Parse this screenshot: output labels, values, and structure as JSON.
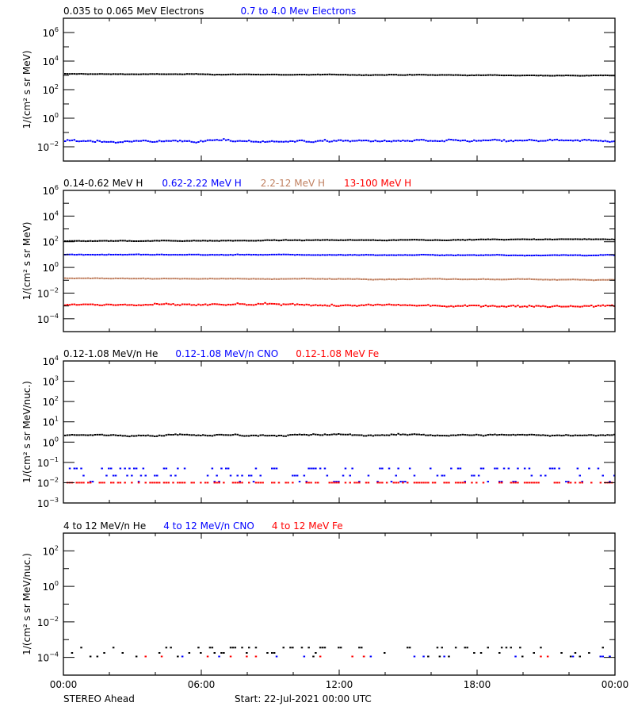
{
  "chart_data": [
    {
      "type": "scatter",
      "title": "",
      "legend": [
        {
          "label": "0.035 to 0.065 MeV Electrons",
          "color": "#000000"
        },
        {
          "label": "0.7 to 4.0 Mev Electrons",
          "color": "#0000ff"
        }
      ],
      "ylabel": "1/(cm² s sr MeV)",
      "yscale": "log",
      "ylim_exp": [
        -3,
        7
      ],
      "ytick_exps": [
        -2,
        0,
        2,
        4,
        6
      ],
      "ytick_labels": [
        "10⁻²",
        "10⁰",
        "10²",
        "10⁴",
        "10⁶"
      ],
      "series": [
        {
          "name": "0.035 to 0.065 MeV Electrons",
          "color": "#000000",
          "level_exp": 3.1,
          "noise": 0.03,
          "trend": -0.12
        },
        {
          "name": "0.7 to 4.0 Mev Electrons",
          "color": "#0000ff",
          "level_exp": -1.6,
          "noise": 0.12,
          "trend": 0.0
        }
      ]
    },
    {
      "type": "scatter",
      "legend": [
        {
          "label": "0.14-0.62 MeV H",
          "color": "#000000"
        },
        {
          "label": "0.62-2.22 MeV H",
          "color": "#0000ff"
        },
        {
          "label": "2.2-12 MeV H",
          "color": "#c08060"
        },
        {
          "label": "13-100 MeV H",
          "color": "#ff0000"
        }
      ],
      "ylabel": "1/(cm² s sr MeV)",
      "yscale": "log",
      "ylim_exp": [
        -5,
        6
      ],
      "ytick_exps": [
        -4,
        -2,
        0,
        2,
        4,
        6
      ],
      "ytick_labels": [
        "10⁻⁴",
        "10⁻²",
        "10⁰",
        "10²",
        "10⁴",
        "10⁶"
      ],
      "series": [
        {
          "name": "0.14-0.62 MeV H",
          "color": "#000000",
          "level_exp": 2.05,
          "noise": 0.04,
          "trend": 0.15
        },
        {
          "name": "0.62-2.22 MeV H",
          "color": "#0000ff",
          "level_exp": 1.0,
          "noise": 0.04,
          "trend": -0.05
        },
        {
          "name": "2.2-12 MeV H",
          "color": "#c08060",
          "level_exp": -0.85,
          "noise": 0.04,
          "trend": -0.1
        },
        {
          "name": "13-100 MeV H",
          "color": "#ff0000",
          "level_exp": -2.9,
          "noise": 0.12,
          "trend": -0.1
        }
      ]
    },
    {
      "type": "scatter",
      "legend": [
        {
          "label": "0.12-1.08 MeV/n He",
          "color": "#000000"
        },
        {
          "label": "0.12-1.08 MeV/n CNO",
          "color": "#0000ff"
        },
        {
          "label": "0.12-1.08 MeV Fe",
          "color": "#ff0000"
        }
      ],
      "ylabel": "1/(cm² s sr MeV/nuc.)",
      "yscale": "log",
      "ylim_exp": [
        -3,
        4
      ],
      "ytick_exps": [
        -3,
        -2,
        -1,
        0,
        1,
        2,
        3,
        4
      ],
      "ytick_labels": [
        "10⁻³",
        "10⁻²",
        "10⁻¹",
        "10⁰",
        "10¹",
        "10²",
        "10³",
        "10⁴"
      ],
      "series": [
        {
          "name": "0.12-1.08 MeV/n He",
          "color": "#000000",
          "level_exp": 0.35,
          "noise": 0.06,
          "trend": 0.0
        },
        {
          "name": "0.12-1.08 MeV/n CNO",
          "color": "#0000ff",
          "level_exp": -1.6,
          "noise": 0.3,
          "trend": 0.0,
          "sparse": true
        },
        {
          "name": "0.12-1.08 MeV Fe",
          "color": "#ff0000",
          "level_exp": -2.0,
          "noise": 0.0,
          "trend": 0.0,
          "sparse": true
        }
      ]
    },
    {
      "type": "scatter",
      "legend": [
        {
          "label": "4 to 12 MeV/n He",
          "color": "#000000"
        },
        {
          "label": "4 to 12 MeV/n CNO",
          "color": "#0000ff"
        },
        {
          "label": "4 to 12 MeV Fe",
          "color": "#ff0000"
        }
      ],
      "ylabel": "1/(cm² s sr MeV/nuc.)",
      "yscale": "log",
      "ylim_exp": [
        -5,
        3
      ],
      "ytick_exps": [
        -4,
        -2,
        0,
        2
      ],
      "ytick_labels": [
        "10⁻⁴",
        "10⁻²",
        "10⁰",
        "10²"
      ],
      "series": [
        {
          "name": "4 to 12 MeV/n He",
          "color": "#000000",
          "level_exp": -3.65,
          "noise": 0.15,
          "trend": 0.0,
          "sparse": true
        },
        {
          "name": "4 to 12 MeV/n CNO",
          "color": "#0000ff",
          "level_exp": -3.95,
          "noise": 0.0,
          "trend": 0.0,
          "sparse": true
        },
        {
          "name": "4 to 12 MeV Fe",
          "color": "#ff0000",
          "level_exp": -3.95,
          "noise": 0.0,
          "trend": 0.0,
          "sparse": true
        }
      ]
    }
  ],
  "x_axis": {
    "tick_labels": [
      "00:00",
      "06:00",
      "12:00",
      "18:00",
      "00:00"
    ],
    "range_hours": [
      0,
      24
    ],
    "minor_tick_hours": 2
  },
  "footer": {
    "spacecraft": "STEREO Ahead",
    "start": "Start: 22-Jul-2021 00:00 UTC"
  }
}
